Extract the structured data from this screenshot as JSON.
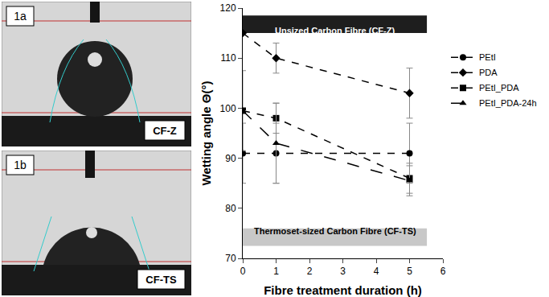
{
  "panels": [
    {
      "label": "1a",
      "sample": "CF-Z"
    },
    {
      "label": "1b",
      "sample": "CF-TS"
    }
  ],
  "chart_data": {
    "type": "line",
    "x_label": "Fibre treatment duration (h)",
    "y_label": "Wetting angle Θ(°)",
    "xlim": [
      0,
      6
    ],
    "xticks": [
      0,
      1,
      2,
      3,
      4,
      5,
      6
    ],
    "ylim": [
      70,
      120
    ],
    "yticks": [
      70,
      80,
      90,
      100,
      110,
      120
    ],
    "grid": false,
    "legend": "right",
    "annotations": [
      "Unsized Carbon Fibre (CF-Z)",
      "Thermoset-sized Carbon Fibre (CF-TS)"
    ],
    "series": [
      {
        "name": "PEtI",
        "color": "#000000",
        "marker": "circle",
        "line_style": "dash",
        "x": [
          0,
          1,
          5
        ],
        "values": [
          91,
          91,
          91
        ],
        "errors": [
          6,
          6,
          6
        ]
      },
      {
        "name": "PDA",
        "color": "#000000",
        "marker": "diamond",
        "line_style": "dash",
        "x": [
          0,
          1,
          5
        ],
        "values": [
          115,
          110,
          103
        ],
        "errors": [
          0,
          3,
          5
        ]
      },
      {
        "name": "PEtI_PDA",
        "color": "#000000",
        "marker": "square",
        "line_style": "dash",
        "x": [
          0,
          1,
          5
        ],
        "values": [
          99.5,
          98,
          86
        ],
        "errors": [
          8,
          3,
          3
        ]
      },
      {
        "name": "PEtI_PDA-24h",
        "color": "#000000",
        "marker": "triangle-up",
        "line_style": "longdash",
        "x": [
          0,
          1,
          5
        ],
        "values": [
          99.5,
          93,
          85.5
        ],
        "errors": [
          0,
          8,
          3
        ]
      }
    ]
  }
}
